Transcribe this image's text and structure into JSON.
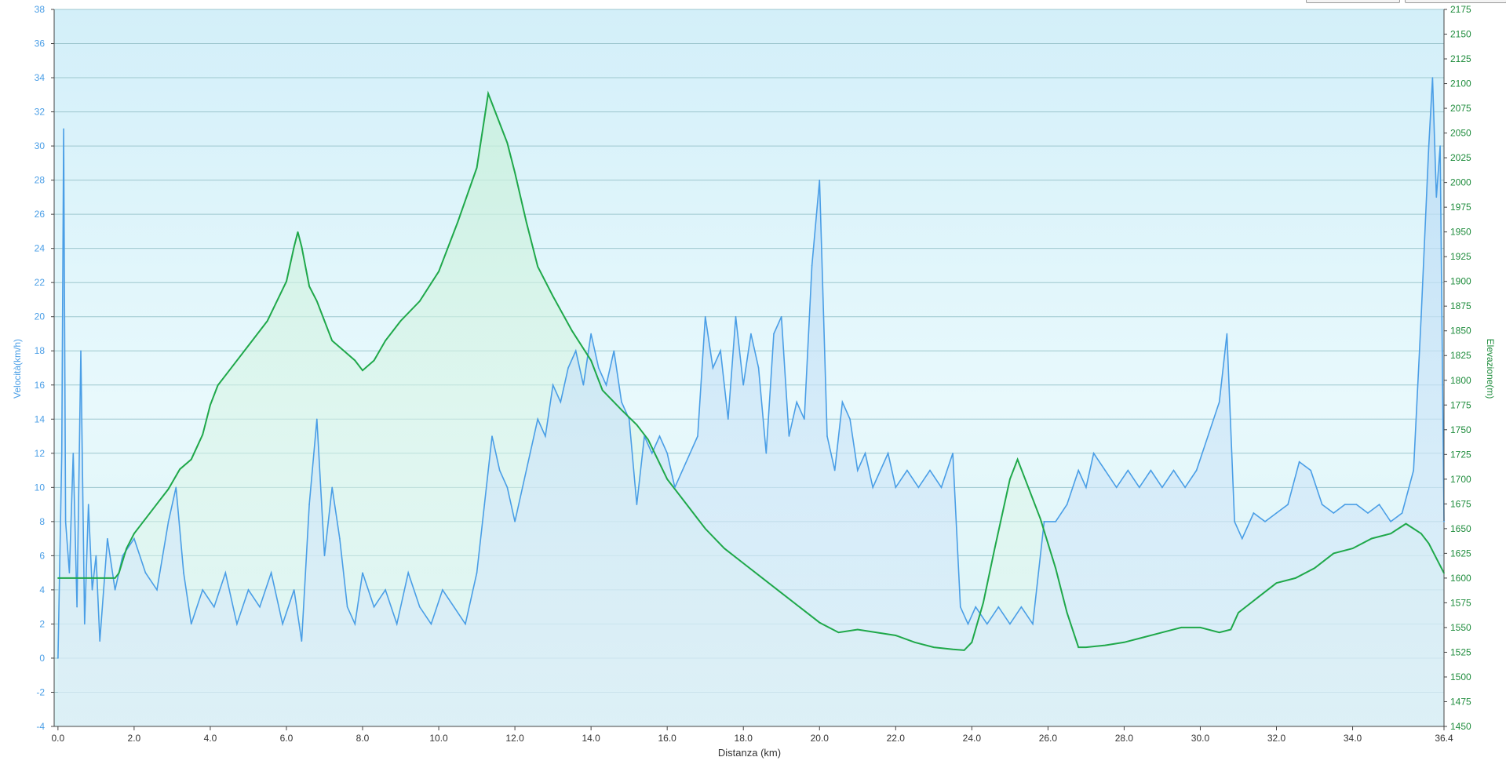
{
  "chart_data": {
    "type": "line",
    "xlabel": "Distanza  (km)",
    "ylabel_left": "Velocità(km/h)",
    "ylabel_right": "Elevazione(m)",
    "xlim": [
      -0.1,
      36.4
    ],
    "ylim_left": [
      -4,
      38
    ],
    "ylim_right": [
      1450,
      2175
    ],
    "x_ticks": [
      "0.0",
      "2.0",
      "4.0",
      "6.0",
      "8.0",
      "10.0",
      "12.0",
      "14.0",
      "16.0",
      "18.0",
      "20.0",
      "22.0",
      "24.0",
      "26.0",
      "28.0",
      "30.0",
      "32.0",
      "34.0",
      "36.4"
    ],
    "x_tick_values": [
      0,
      2,
      4,
      6,
      8,
      10,
      12,
      14,
      16,
      18,
      20,
      22,
      24,
      26,
      28,
      30,
      32,
      34,
      36.4
    ],
    "y_ticks_left": [
      -4,
      -2,
      0,
      2,
      4,
      6,
      8,
      10,
      12,
      14,
      16,
      18,
      20,
      22,
      24,
      26,
      28,
      30,
      32,
      34,
      36,
      38
    ],
    "y_ticks_right": [
      1450,
      1475,
      1500,
      1525,
      1550,
      1575,
      1600,
      1625,
      1650,
      1675,
      1700,
      1725,
      1750,
      1775,
      1800,
      1825,
      1850,
      1875,
      1900,
      1925,
      1950,
      1975,
      2000,
      2025,
      2050,
      2075,
      2100,
      2125,
      2150,
      2175
    ],
    "grid": true,
    "colors": {
      "speed": "#4a9ee6",
      "elevation": "#1fa84a",
      "left_axis_text": "#4a9ee6",
      "right_axis_text": "#1e8c3c",
      "grid": "#9ec7cf",
      "bg_top": "#d4f0fa",
      "bg_bottom": "#e8fafb"
    },
    "series": [
      {
        "key": "speed",
        "axis": "left",
        "x": [
          0.0,
          0.1,
          0.15,
          0.2,
          0.3,
          0.4,
          0.5,
          0.6,
          0.7,
          0.8,
          0.9,
          1.0,
          1.1,
          1.3,
          1.5,
          1.7,
          2.0,
          2.3,
          2.6,
          2.9,
          3.1,
          3.3,
          3.5,
          3.8,
          4.1,
          4.4,
          4.7,
          5.0,
          5.3,
          5.6,
          5.9,
          6.2,
          6.4,
          6.6,
          6.8,
          7.0,
          7.2,
          7.4,
          7.6,
          7.8,
          8.0,
          8.3,
          8.6,
          8.9,
          9.2,
          9.5,
          9.8,
          10.1,
          10.4,
          10.7,
          11.0,
          11.2,
          11.4,
          11.6,
          11.8,
          12.0,
          12.2,
          12.4,
          12.6,
          12.8,
          13.0,
          13.2,
          13.4,
          13.6,
          13.8,
          14.0,
          14.2,
          14.4,
          14.6,
          14.8,
          15.0,
          15.2,
          15.4,
          15.6,
          15.8,
          16.0,
          16.2,
          16.4,
          16.6,
          16.8,
          17.0,
          17.2,
          17.4,
          17.6,
          17.8,
          18.0,
          18.2,
          18.4,
          18.6,
          18.8,
          19.0,
          19.2,
          19.4,
          19.6,
          19.8,
          20.0,
          20.2,
          20.4,
          20.6,
          20.8,
          21.0,
          21.2,
          21.4,
          21.6,
          21.8,
          22.0,
          22.3,
          22.6,
          22.9,
          23.2,
          23.5,
          23.7,
          23.9,
          24.1,
          24.4,
          24.7,
          25.0,
          25.3,
          25.6,
          25.9,
          26.2,
          26.5,
          26.8,
          27.0,
          27.2,
          27.5,
          27.8,
          28.1,
          28.4,
          28.7,
          29.0,
          29.3,
          29.6,
          29.9,
          30.2,
          30.5,
          30.7,
          30.9,
          31.1,
          31.4,
          31.7,
          32.0,
          32.3,
          32.6,
          32.9,
          33.2,
          33.5,
          33.8,
          34.1,
          34.4,
          34.7,
          35.0,
          35.3,
          35.6,
          35.8,
          36.0,
          36.1,
          36.2,
          36.3,
          36.4
        ],
        "values": [
          0.0,
          12.0,
          31.0,
          8.0,
          5.0,
          12.0,
          3.0,
          18.0,
          2.0,
          9.0,
          4.0,
          6.0,
          1.0,
          7.0,
          4.0,
          6.0,
          7.0,
          5.0,
          4.0,
          8.0,
          10.0,
          5.0,
          2.0,
          4.0,
          3.0,
          5.0,
          2.0,
          4.0,
          3.0,
          5.0,
          2.0,
          4.0,
          1.0,
          9.0,
          14.0,
          6.0,
          10.0,
          7.0,
          3.0,
          2.0,
          5.0,
          3.0,
          4.0,
          2.0,
          5.0,
          3.0,
          2.0,
          4.0,
          3.0,
          2.0,
          5.0,
          9.0,
          13.0,
          11.0,
          10.0,
          8.0,
          10.0,
          12.0,
          14.0,
          13.0,
          16.0,
          15.0,
          17.0,
          18.0,
          16.0,
          19.0,
          17.0,
          16.0,
          18.0,
          15.0,
          14.0,
          9.0,
          13.0,
          12.0,
          13.0,
          12.0,
          10.0,
          11.0,
          12.0,
          13.0,
          20.0,
          17.0,
          18.0,
          14.0,
          20.0,
          16.0,
          19.0,
          17.0,
          12.0,
          19.0,
          20.0,
          13.0,
          15.0,
          14.0,
          23.0,
          28.0,
          13.0,
          11.0,
          15.0,
          14.0,
          11.0,
          12.0,
          10.0,
          11.0,
          12.0,
          10.0,
          11.0,
          10.0,
          11.0,
          10.0,
          12.0,
          3.0,
          2.0,
          3.0,
          2.0,
          3.0,
          2.0,
          3.0,
          2.0,
          8.0,
          8.0,
          9.0,
          11.0,
          10.0,
          12.0,
          11.0,
          10.0,
          11.0,
          10.0,
          11.0,
          10.0,
          11.0,
          10.0,
          11.0,
          13.0,
          15.0,
          19.0,
          8.0,
          7.0,
          8.5,
          8.0,
          8.5,
          9.0,
          11.5,
          11.0,
          9.0,
          8.5,
          9.0,
          9.0,
          8.5,
          9.0,
          8.0,
          8.5,
          11.0,
          20.0,
          30.0,
          34.0,
          27.0,
          30.0,
          8.0
        ]
      },
      {
        "key": "elevation",
        "axis": "right",
        "x": [
          0.0,
          0.5,
          1.0,
          1.5,
          1.6,
          1.8,
          2.0,
          2.3,
          2.6,
          2.9,
          3.2,
          3.5,
          3.8,
          4.0,
          4.2,
          4.5,
          5.0,
          5.5,
          6.0,
          6.2,
          6.3,
          6.4,
          6.6,
          6.8,
          7.0,
          7.2,
          7.5,
          7.8,
          8.0,
          8.3,
          8.6,
          9.0,
          9.5,
          10.0,
          10.5,
          11.0,
          11.2,
          11.3,
          11.5,
          11.8,
          12.0,
          12.3,
          12.6,
          13.0,
          13.5,
          14.0,
          14.3,
          14.8,
          15.2,
          15.5,
          16.0,
          16.4,
          17.0,
          17.5,
          18.0,
          18.5,
          19.0,
          19.5,
          20.0,
          20.5,
          21.0,
          21.5,
          22.0,
          22.5,
          23.0,
          23.5,
          23.8,
          24.0,
          24.3,
          24.6,
          25.0,
          25.2,
          25.4,
          25.8,
          26.2,
          26.5,
          26.8,
          27.0,
          27.5,
          28.0,
          28.5,
          29.0,
          29.5,
          30.0,
          30.5,
          30.8,
          31.0,
          31.5,
          32.0,
          32.5,
          33.0,
          33.5,
          34.0,
          34.5,
          35.0,
          35.4,
          35.6,
          35.8,
          36.0,
          36.2,
          36.4
        ],
        "values": [
          1600,
          1600,
          1600,
          1600,
          1605,
          1630,
          1645,
          1660,
          1675,
          1690,
          1710,
          1720,
          1745,
          1775,
          1795,
          1810,
          1835,
          1860,
          1900,
          1935,
          1950,
          1935,
          1895,
          1880,
          1860,
          1840,
          1830,
          1820,
          1810,
          1820,
          1840,
          1860,
          1880,
          1910,
          1960,
          2015,
          2065,
          2090,
          2070,
          2040,
          2010,
          1960,
          1915,
          1885,
          1850,
          1820,
          1790,
          1770,
          1755,
          1740,
          1700,
          1680,
          1650,
          1630,
          1615,
          1600,
          1585,
          1570,
          1555,
          1545,
          1548,
          1545,
          1542,
          1535,
          1530,
          1528,
          1527,
          1535,
          1575,
          1630,
          1700,
          1720,
          1700,
          1660,
          1610,
          1565,
          1530,
          1530,
          1532,
          1535,
          1540,
          1545,
          1550,
          1550,
          1545,
          1548,
          1565,
          1580,
          1595,
          1600,
          1610,
          1625,
          1630,
          1640,
          1645,
          1655,
          1650,
          1645,
          1635,
          1620,
          1605
        ]
      }
    ]
  }
}
